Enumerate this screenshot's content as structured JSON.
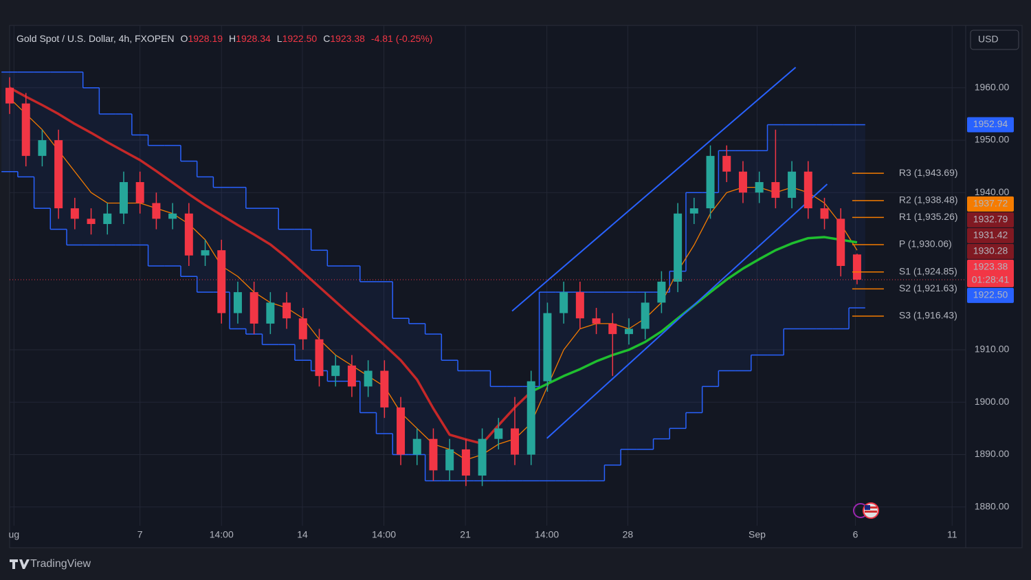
{
  "chart_data": {
    "type": "candlestick",
    "title": "Gold Spot / U.S. Dollar, 4h, FXOPEN",
    "ohlc": [
      {
        "label": "O",
        "value": "1928.19"
      },
      {
        "label": "H",
        "value": "1928.34"
      },
      {
        "label": "L",
        "value": "1922.50"
      },
      {
        "label": "C",
        "value": "1923.38"
      }
    ],
    "change": "-4.81 (-0.25%)",
    "currency": "USD",
    "brand": "TradingView",
    "up_color": "#26a69a",
    "down_color": "#f23645",
    "x": [
      0,
      3,
      6,
      9,
      12,
      15,
      18,
      21,
      24,
      27,
      30,
      33,
      36,
      39,
      42,
      45,
      48,
      51,
      54,
      57,
      60,
      63,
      66,
      69,
      72,
      75,
      78,
      81,
      84,
      87,
      90,
      93,
      96,
      99,
      102,
      105,
      108,
      111,
      114,
      117,
      120,
      123,
      126,
      129,
      132,
      135,
      138,
      141,
      144,
      147,
      150,
      153,
      156
    ],
    "open": [
      1960,
      1957,
      1947,
      1950,
      1937,
      1935,
      1934,
      1936,
      1942,
      1938,
      1935,
      1936,
      1928,
      1929,
      1917,
      1921,
      1915,
      1919,
      1916,
      1912,
      1905,
      1907,
      1903,
      1906,
      1899,
      1890,
      1893,
      1887,
      1891,
      1886,
      1893,
      1895,
      1890,
      1904,
      1917,
      1921,
      1916,
      1915,
      1913,
      1914,
      1919,
      1923,
      1936,
      1937,
      1947,
      1944,
      1940,
      1942,
      1939,
      1944,
      1937,
      1935,
      1928.19
    ],
    "high": [
      1962,
      1959,
      1952,
      1952,
      1939,
      1937,
      1938,
      1944,
      1944,
      1940,
      1938,
      1938,
      1931,
      1931,
      1923,
      1923,
      1921,
      1921,
      1918,
      1914,
      1909,
      1909,
      1908,
      1908,
      1901,
      1895,
      1895,
      1893,
      1893,
      1895,
      1897,
      1901,
      1906,
      1919,
      1923,
      1923,
      1918,
      1917,
      1916,
      1921,
      1925,
      1938,
      1939,
      1949,
      1949,
      1946,
      1944,
      1952,
      1946,
      1946,
      1939,
      1937,
      1928.34
    ],
    "low": [
      1955,
      1945,
      1945,
      1935,
      1933,
      1932,
      1932,
      1934,
      1936,
      1933,
      1933,
      1926,
      1926,
      1915,
      1915,
      1913,
      1913,
      1914,
      1910,
      1903,
      1903,
      1901,
      1901,
      1897,
      1888,
      1888,
      1885,
      1885,
      1884,
      1884,
      1891,
      1888,
      1888,
      1902,
      1915,
      1914,
      1913,
      1905,
      1911,
      1912,
      1917,
      1921,
      1934,
      1935,
      1942,
      1938,
      1938,
      1937,
      1937,
      1935,
      1933,
      1924,
      1922.5
    ],
    "close": [
      1957,
      1947,
      1950,
      1937,
      1935,
      1934,
      1936,
      1942,
      1938,
      1935,
      1936,
      1928,
      1929,
      1917,
      1921,
      1915,
      1919,
      1916,
      1912,
      1905,
      1907,
      1903,
      1906,
      1899,
      1890,
      1893,
      1887,
      1891,
      1886,
      1893,
      1895,
      1890,
      1904,
      1917,
      1921,
      1916,
      1915,
      1913,
      1914,
      1919,
      1923,
      1936,
      1937,
      1947,
      1944,
      1940,
      1942,
      1939,
      1944,
      1937,
      1935,
      1926,
      1923.38
    ],
    "channel": {
      "color": "#2962ff",
      "upper": [
        1963,
        1963,
        1963,
        1963,
        1963,
        1960,
        1955,
        1955,
        1951,
        1949,
        1949,
        1946,
        1943,
        1941,
        1941,
        1937,
        1937,
        1933,
        1933,
        1929,
        1926,
        1926,
        1923,
        1923,
        1916,
        1915,
        1913,
        1908,
        1906,
        1906,
        1903,
        1903,
        1903,
        1921,
        1921,
        1921,
        1921,
        1921,
        1921,
        1921,
        1921,
        1925,
        1940,
        1940,
        1948,
        1948,
        1948,
        1952.94,
        1952.94,
        1952.94,
        1952.94,
        1952.94,
        1952.94
      ],
      "lower": [
        1944,
        1943,
        1937,
        1933,
        1930,
        1930,
        1930,
        1930,
        1930,
        1926,
        1926,
        1924,
        1921,
        1921,
        1914,
        1913,
        1911,
        1911,
        1908,
        1906,
        1904,
        1904,
        1898,
        1894,
        1890,
        1890,
        1885,
        1885,
        1885,
        1885,
        1885,
        1885,
        1885,
        1885,
        1885,
        1885,
        1885,
        1888,
        1891,
        1891,
        1893,
        1895,
        1898,
        1903,
        1906,
        1906,
        1909,
        1909,
        1914,
        1914,
        1914,
        1914,
        1918
      ]
    },
    "overlays": [
      {
        "color": "#f57c00",
        "width": 1.3,
        "values": [
          1958,
          1955,
          1952,
          1948,
          1944,
          1940,
          1938,
          1938,
          1938,
          1937,
          1936,
          1934,
          1931,
          1926,
          1924,
          1921,
          1919,
          1918,
          1916,
          1912,
          1909,
          1907,
          1905,
          1903,
          1898,
          1895,
          1892,
          1891,
          1889,
          1890,
          1892,
          1893,
          1896,
          1903,
          1910,
          1914,
          1915,
          1915,
          1914,
          1916,
          1919,
          1925,
          1930,
          1936,
          1940,
          1941,
          1941,
          1940,
          1941,
          1940,
          1938,
          1934,
          1929
        ]
      },
      {
        "color": "#c62828",
        "width": 3.5,
        "values": [
          1960,
          1958.3,
          1956.7,
          1955,
          1953.1,
          1951.4,
          1949.6,
          1947.9,
          1946.2,
          1944.1,
          1941.9,
          1939.7,
          1937.6,
          1935.7,
          1933.8,
          1932,
          1930.1,
          1927.6,
          1924.8,
          1922,
          1919.2,
          1916.4,
          1913.7,
          1910.9,
          1908,
          1904.3,
          1898.8,
          1893.8,
          1892.9,
          1892.1,
          1895.6,
          1899,
          1902,
          null,
          null,
          null,
          null,
          null,
          null,
          null,
          null,
          null,
          null,
          null,
          null,
          null,
          null,
          null,
          null,
          null,
          null,
          null,
          null
        ]
      },
      {
        "color": "#1fbf2f",
        "width": 3.5,
        "values": [
          null,
          null,
          null,
          null,
          null,
          null,
          null,
          null,
          null,
          null,
          null,
          null,
          null,
          null,
          null,
          null,
          null,
          null,
          null,
          null,
          null,
          null,
          null,
          null,
          null,
          null,
          null,
          null,
          null,
          null,
          null,
          null,
          1902,
          1903.5,
          1905,
          1906.3,
          1907.8,
          1909,
          1910,
          1911.5,
          1913.5,
          1916,
          1918.5,
          1921,
          1923.4,
          1925.5,
          1927.3,
          1929,
          1930.3,
          1931.3,
          1931.5,
          1931,
          1930.5
        ]
      }
    ],
    "trendlines": [
      {
        "color": "#2962ff",
        "x": [
          92.5,
          144.7
        ],
        "y": [
          1917.4,
          1963.9
        ]
      },
      {
        "color": "#2962ff",
        "x": [
          98.9,
          150.5
        ],
        "y": [
          1893.1,
          1941.6
        ]
      }
    ],
    "pivots": {
      "color": "#f57c00",
      "levels": [
        {
          "value": 1943.69,
          "label": "R3 (1,943.69)"
        },
        {
          "value": 1938.48,
          "label": "R2 (1,938.48)"
        },
        {
          "value": 1935.26,
          "label": "R1 (1,935.26)"
        },
        {
          "value": 1930.06,
          "label": "P (1,930.06)"
        },
        {
          "value": 1924.85,
          "label": "S1 (1,924.85)"
        },
        {
          "value": 1921.63,
          "label": "S2 (1,921.63)"
        },
        {
          "value": 1916.43,
          "label": "S3 (1,916.43)"
        }
      ]
    },
    "price_tags": [
      {
        "value": 1952.94,
        "label": "1952.94",
        "color": "#2962ff"
      },
      {
        "value": 1937.72,
        "label": "1937.72",
        "color": "#f57c00"
      },
      {
        "value": 1932.79,
        "label": "1932.79",
        "color": "#801922"
      },
      {
        "value": 1931.42,
        "label": "1931.42",
        "color": "#801922"
      },
      {
        "value": 1930.28,
        "label": "1930.28",
        "color": "#801922"
      },
      {
        "value": 1923.38,
        "label": "1923.38",
        "color": "#f23645",
        "countdown": "01:28:41"
      },
      {
        "value": 1922.5,
        "label": "1922.50",
        "color": "#2962ff"
      }
    ],
    "xlim": [
      0,
      176
    ],
    "xticks": [
      {
        "value": 0.8,
        "label": "ug"
      },
      {
        "value": 24,
        "label": "7"
      },
      {
        "value": 39,
        "label": "14:00"
      },
      {
        "value": 53.9,
        "label": "14"
      },
      {
        "value": 68.9,
        "label": "14:00"
      },
      {
        "value": 83.9,
        "label": "21"
      },
      {
        "value": 98.9,
        "label": "14:00"
      },
      {
        "value": 113.8,
        "label": "28"
      },
      {
        "value": 137.6,
        "label": "Sep"
      },
      {
        "value": 155.7,
        "label": "6"
      },
      {
        "value": 173.5,
        "label": "11"
      }
    ],
    "ylim": [
      1872.5,
      1971.5
    ],
    "yticks": [
      {
        "value": 1960,
        "label": "1960.00"
      },
      {
        "value": 1950,
        "label": "1950.00"
      },
      {
        "value": 1940,
        "label": "1940.00"
      },
      {
        "value": 1910,
        "label": "1910.00"
      },
      {
        "value": 1900,
        "label": "1900.00"
      },
      {
        "value": 1890,
        "label": "1890.00"
      },
      {
        "value": 1880,
        "label": "1880.00"
      }
    ],
    "grid": true
  }
}
